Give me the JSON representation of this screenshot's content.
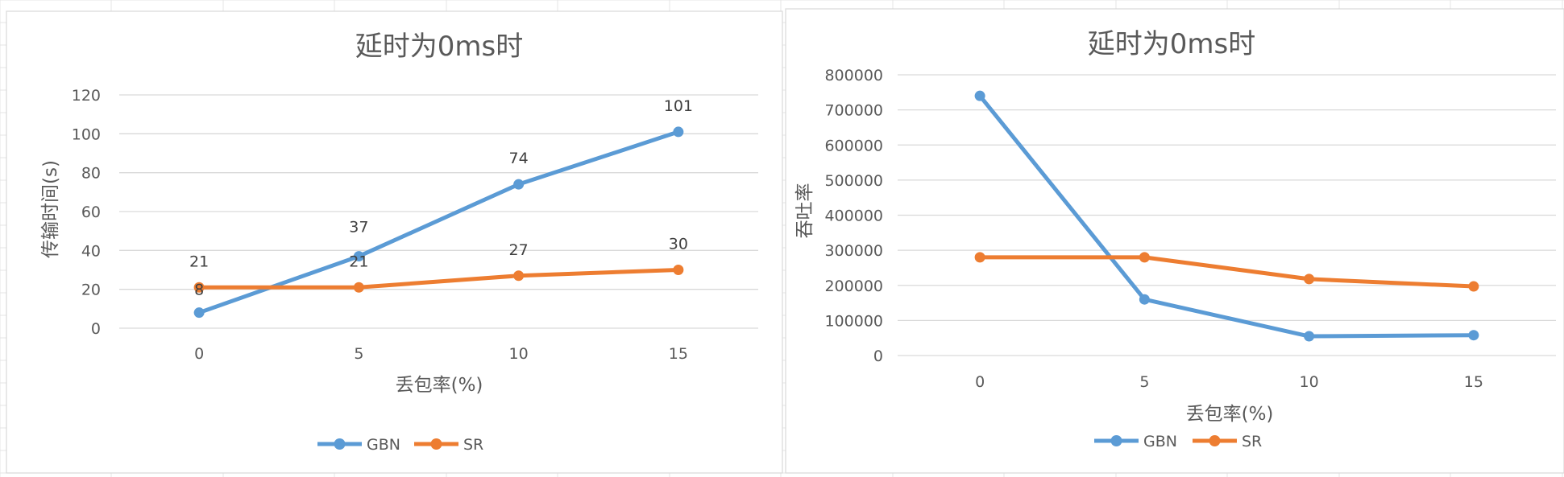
{
  "colors": {
    "gbn": "#5b9bd5",
    "sr": "#ed7d31",
    "grid": "#d9d9d9",
    "axis_text": "#595959",
    "title_text": "#595959",
    "label_text": "#404040",
    "sheet_grid": "#e4e4e4",
    "panel_border": "#d9d9d9"
  },
  "chart_data": [
    {
      "type": "line",
      "title": "延时为0ms时",
      "xlabel": "丢包率(%)",
      "ylabel": "传输时间(s)",
      "categories": [
        "0",
        "5",
        "10",
        "15"
      ],
      "ylim": [
        0,
        120
      ],
      "yticks": [
        "0",
        "20",
        "40",
        "60",
        "80",
        "100",
        "120"
      ],
      "grid": true,
      "legend": "bottom",
      "data_labels": true,
      "series": [
        {
          "name": "GBN",
          "values": [
            8,
            37,
            74,
            101
          ],
          "labels": [
            "8",
            "37",
            "74",
            "101"
          ],
          "color": "#5b9bd5"
        },
        {
          "name": "SR",
          "values": [
            21,
            21,
            27,
            30
          ],
          "labels": [
            "21",
            "21",
            "27",
            "30"
          ],
          "color": "#ed7d31"
        }
      ]
    },
    {
      "type": "line",
      "title": "延时为0ms时",
      "xlabel": "丢包率(%)",
      "ylabel": "吞吐率",
      "categories": [
        "0",
        "5",
        "10",
        "15"
      ],
      "ylim": [
        0,
        800000
      ],
      "yticks": [
        "0",
        "100000",
        "200000",
        "300000",
        "400000",
        "500000",
        "600000",
        "700000",
        "800000"
      ],
      "grid": true,
      "legend": "bottom",
      "data_labels": false,
      "series": [
        {
          "name": "GBN",
          "values": [
            740000,
            160000,
            55000,
            58000
          ],
          "color": "#5b9bd5"
        },
        {
          "name": "SR",
          "values": [
            280000,
            280000,
            218000,
            197000
          ],
          "color": "#ed7d31"
        }
      ]
    }
  ]
}
